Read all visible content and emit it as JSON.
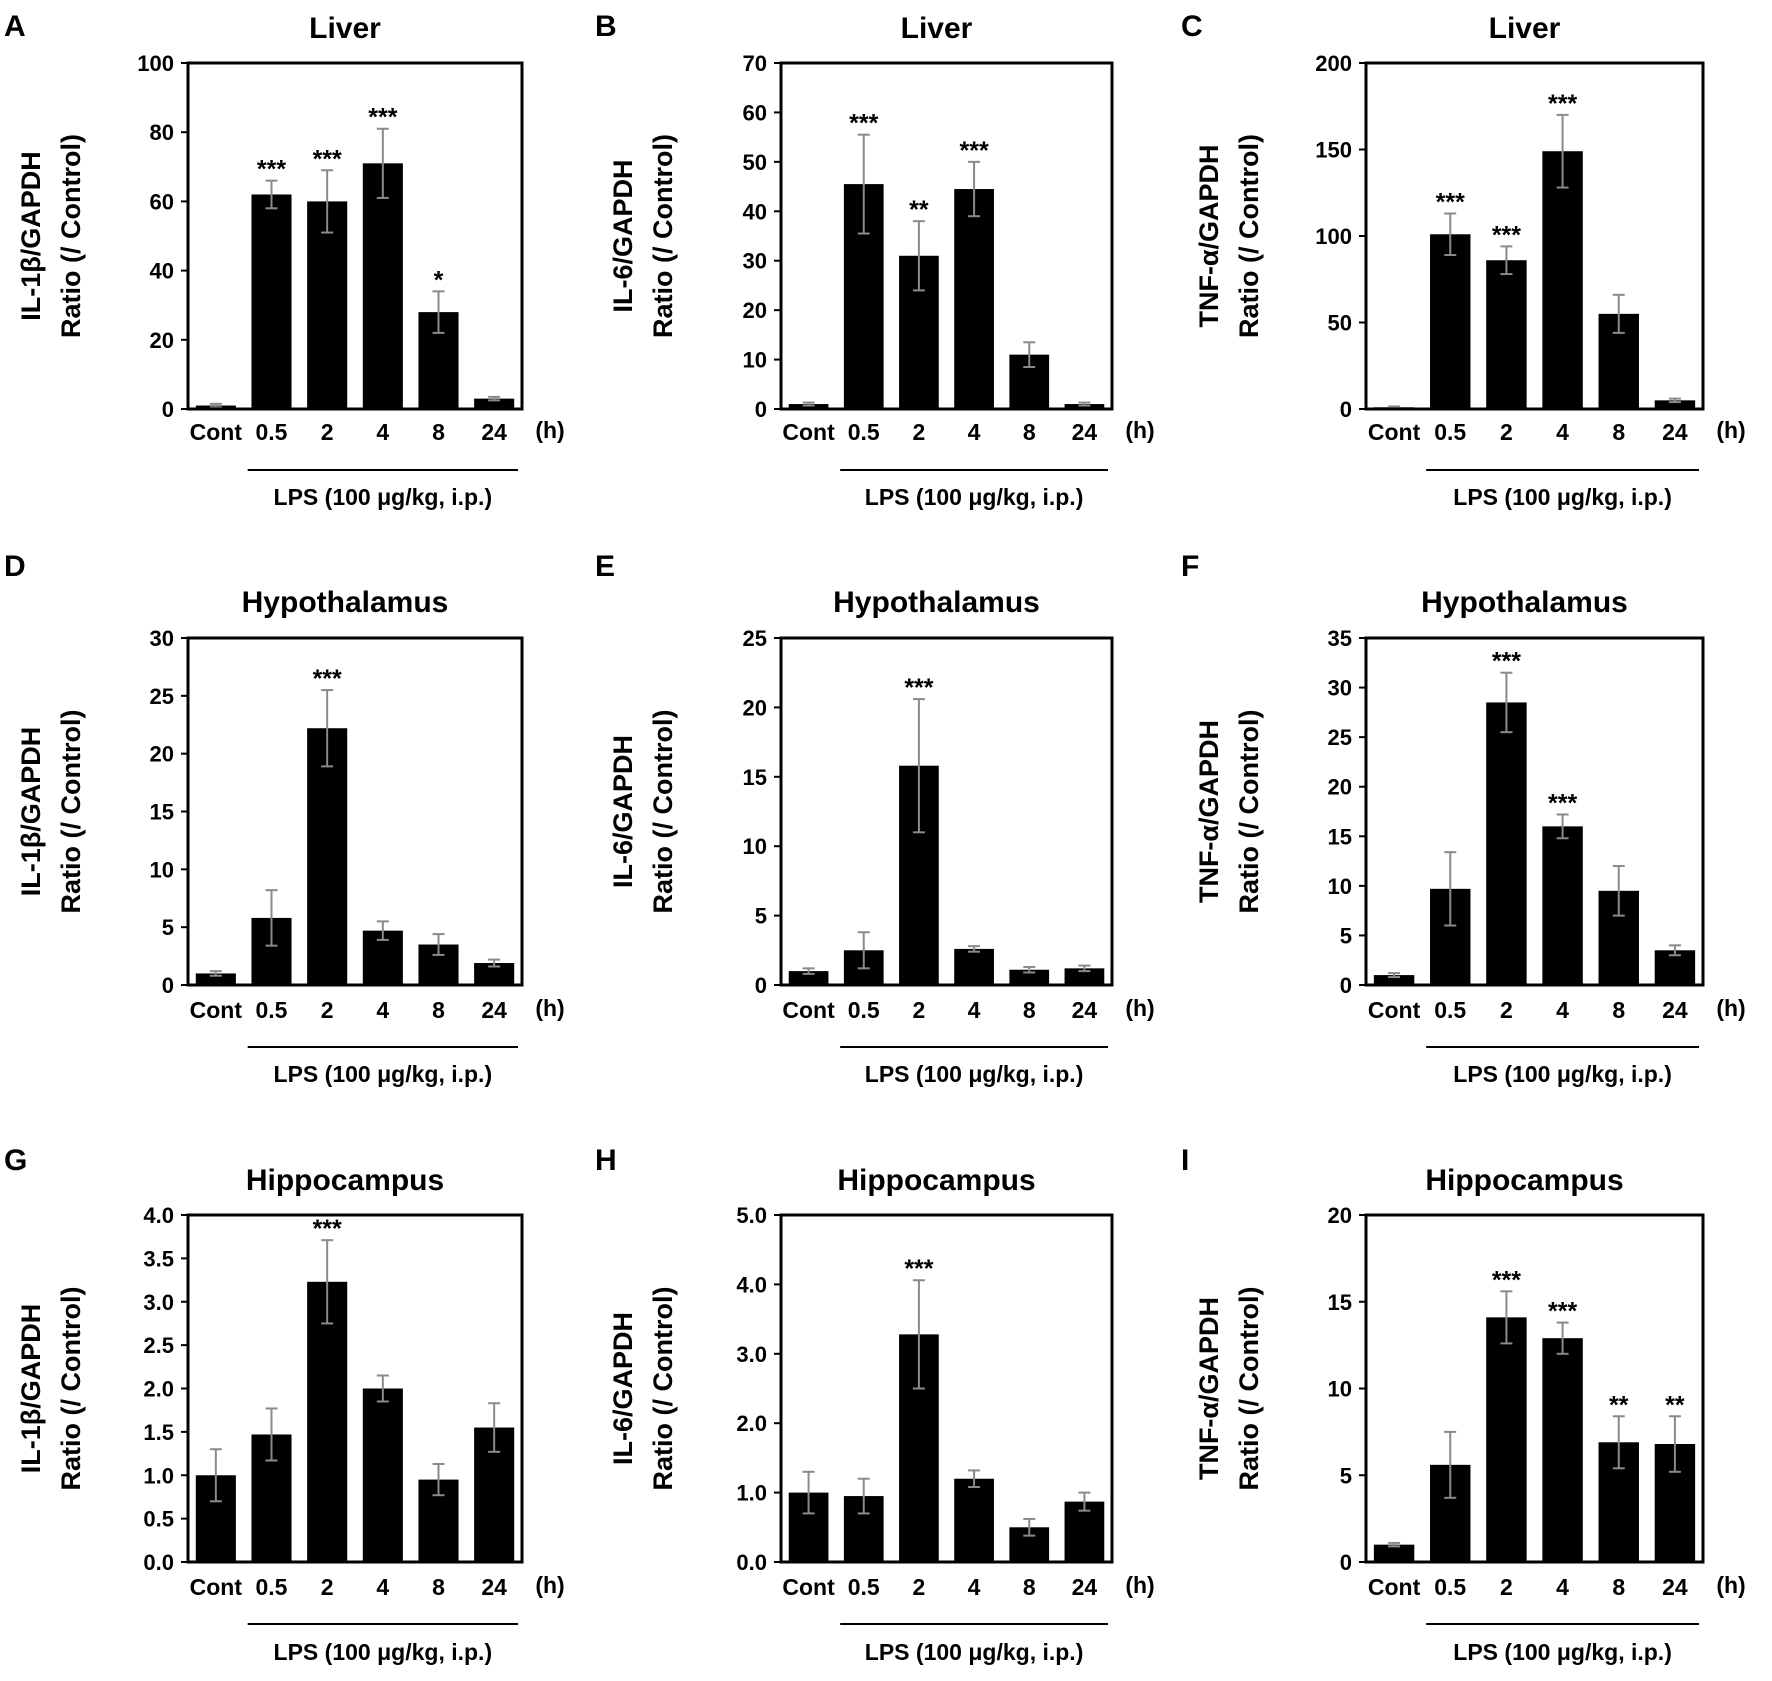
{
  "chart_data": [
    {
      "type": "bar",
      "letter": "A",
      "title": "Liver",
      "ylabel_line1": "IL-1β/GAPDH",
      "ylabel_line2": "Ratio (/ Control)",
      "ylim": [
        0,
        100
      ],
      "yticks": [
        "0",
        "20",
        "40",
        "60",
        "80",
        "100"
      ],
      "categories": [
        "Cont",
        "0.5",
        "2",
        "4",
        "8",
        "24"
      ],
      "values": [
        1,
        62,
        60,
        71,
        28,
        3
      ],
      "errors": [
        0.5,
        4,
        9,
        10,
        6,
        0.5
      ],
      "significance": [
        "",
        "***",
        "***",
        "***",
        "*",
        ""
      ],
      "unit_label": "(h)",
      "treatment_label": "LPS (100 μg/kg, i.p.)"
    },
    {
      "type": "bar",
      "letter": "B",
      "title": "Liver",
      "ylabel_line1": "IL-6/GAPDH",
      "ylabel_line2": "Ratio (/ Control)",
      "ylim": [
        0,
        70
      ],
      "yticks": [
        "0",
        "10",
        "20",
        "30",
        "40",
        "50",
        "60",
        "70"
      ],
      "categories": [
        "Cont",
        "0.5",
        "2",
        "4",
        "8",
        "24"
      ],
      "values": [
        1,
        45.5,
        31,
        44.5,
        11,
        1
      ],
      "errors": [
        0.3,
        10,
        7,
        5.5,
        2.5,
        0.3
      ],
      "significance": [
        "",
        "***",
        "**",
        "***",
        "",
        ""
      ],
      "unit_label": "(h)",
      "treatment_label": "LPS (100 μg/kg, i.p.)"
    },
    {
      "type": "bar",
      "letter": "C",
      "title": "Liver",
      "ylabel_line1": "TNF-α/GAPDH",
      "ylabel_line2": "Ratio (/ Control)",
      "ylim": [
        0,
        200
      ],
      "yticks": [
        "0",
        "50",
        "100",
        "150",
        "200"
      ],
      "categories": [
        "Cont",
        "0.5",
        "2",
        "4",
        "8",
        "24"
      ],
      "values": [
        1,
        101,
        86,
        149,
        55,
        5
      ],
      "errors": [
        0.5,
        12,
        8,
        21,
        11,
        1
      ],
      "significance": [
        "",
        "***",
        "***",
        "***",
        "",
        ""
      ],
      "unit_label": "(h)",
      "treatment_label": "LPS (100 μg/kg, i.p.)"
    },
    {
      "type": "bar",
      "letter": "D",
      "title": "Hypothalamus",
      "ylabel_line1": "IL-1β/GAPDH",
      "ylabel_line2": "Ratio (/ Control)",
      "ylim": [
        0,
        30
      ],
      "yticks": [
        "0",
        "5",
        "10",
        "15",
        "20",
        "25",
        "30"
      ],
      "categories": [
        "Cont",
        "0.5",
        "2",
        "4",
        "8",
        "24"
      ],
      "values": [
        1,
        5.8,
        22.2,
        4.7,
        3.5,
        1.9
      ],
      "errors": [
        0.2,
        2.4,
        3.3,
        0.8,
        0.9,
        0.3
      ],
      "significance": [
        "",
        "",
        "***",
        "",
        "",
        ""
      ],
      "unit_label": "(h)",
      "treatment_label": "LPS (100 μg/kg, i.p.)"
    },
    {
      "type": "bar",
      "letter": "E",
      "title": "Hypothalamus",
      "ylabel_line1": "IL-6/GAPDH",
      "ylabel_line2": "Ratio (/ Control)",
      "ylim": [
        0,
        25
      ],
      "yticks": [
        "0",
        "5",
        "10",
        "15",
        "20",
        "25"
      ],
      "categories": [
        "Cont",
        "0.5",
        "2",
        "4",
        "8",
        "24"
      ],
      "values": [
        1,
        2.5,
        15.8,
        2.6,
        1.1,
        1.2
      ],
      "errors": [
        0.2,
        1.3,
        4.8,
        0.2,
        0.2,
        0.2
      ],
      "significance": [
        "",
        "",
        "***",
        "",
        "",
        ""
      ],
      "unit_label": "(h)",
      "treatment_label": "LPS (100 μg/kg, i.p.)"
    },
    {
      "type": "bar",
      "letter": "F",
      "title": "Hypothalamus",
      "ylabel_line1": "TNF-α/GAPDH",
      "ylabel_line2": "Ratio (/ Control)",
      "ylim": [
        0,
        35
      ],
      "yticks": [
        "0",
        "5",
        "10",
        "15",
        "20",
        "25",
        "30",
        "35"
      ],
      "categories": [
        "Cont",
        "0.5",
        "2",
        "4",
        "8",
        "24"
      ],
      "values": [
        1,
        9.7,
        28.5,
        16,
        9.5,
        3.5
      ],
      "errors": [
        0.2,
        3.7,
        3,
        1.2,
        2.5,
        0.5
      ],
      "significance": [
        "",
        "",
        "***",
        "***",
        "",
        ""
      ],
      "unit_label": "(h)",
      "treatment_label": "LPS (100 μg/kg, i.p.)"
    },
    {
      "type": "bar",
      "letter": "G",
      "title": "Hippocampus",
      "ylabel_line1": "IL-1β/GAPDH",
      "ylabel_line2": "Ratio (/ Control)",
      "ylim": [
        0,
        4
      ],
      "yticks": [
        "0.0",
        "0.5",
        "1.0",
        "1.5",
        "2.0",
        "2.5",
        "3.0",
        "3.5",
        "4.0"
      ],
      "categories": [
        "Cont",
        "0.5",
        "2",
        "4",
        "8",
        "24"
      ],
      "values": [
        1,
        1.47,
        3.23,
        2,
        0.95,
        1.55
      ],
      "errors": [
        0.3,
        0.3,
        0.48,
        0.15,
        0.18,
        0.28
      ],
      "significance": [
        "",
        "",
        "***",
        "",
        "",
        ""
      ],
      "unit_label": "(h)",
      "treatment_label": "LPS (100 μg/kg, i.p.)"
    },
    {
      "type": "bar",
      "letter": "H",
      "title": "Hippocampus",
      "ylabel_line1": "IL-6/GAPDH",
      "ylabel_line2": "Ratio (/ Control)",
      "ylim": [
        0,
        5
      ],
      "yticks": [
        "0.0",
        "1.0",
        "2.0",
        "3.0",
        "4.0",
        "5.0"
      ],
      "categories": [
        "Cont",
        "0.5",
        "2",
        "4",
        "8",
        "24"
      ],
      "values": [
        1,
        0.95,
        3.28,
        1.2,
        0.5,
        0.87
      ],
      "errors": [
        0.3,
        0.25,
        0.78,
        0.12,
        0.12,
        0.13
      ],
      "significance": [
        "",
        "",
        "***",
        "",
        "",
        ""
      ],
      "unit_label": "(h)",
      "treatment_label": "LPS (100 μg/kg, i.p.)"
    },
    {
      "type": "bar",
      "letter": "I",
      "title": "Hippocampus",
      "ylabel_line1": "TNF-α/GAPDH",
      "ylabel_line2": "Ratio (/ Control)",
      "ylim": [
        0,
        20
      ],
      "yticks": [
        "0",
        "5",
        "10",
        "15",
        "20"
      ],
      "categories": [
        "Cont",
        "0.5",
        "2",
        "4",
        "8",
        "24"
      ],
      "values": [
        1,
        5.6,
        14.1,
        12.9,
        6.9,
        6.8
      ],
      "errors": [
        0.1,
        1.9,
        1.5,
        0.9,
        1.5,
        1.6
      ],
      "significance": [
        "",
        "",
        "***",
        "***",
        "**",
        "**"
      ],
      "unit_label": "(h)",
      "treatment_label": "LPS (100 μg/kg, i.p.)"
    }
  ]
}
